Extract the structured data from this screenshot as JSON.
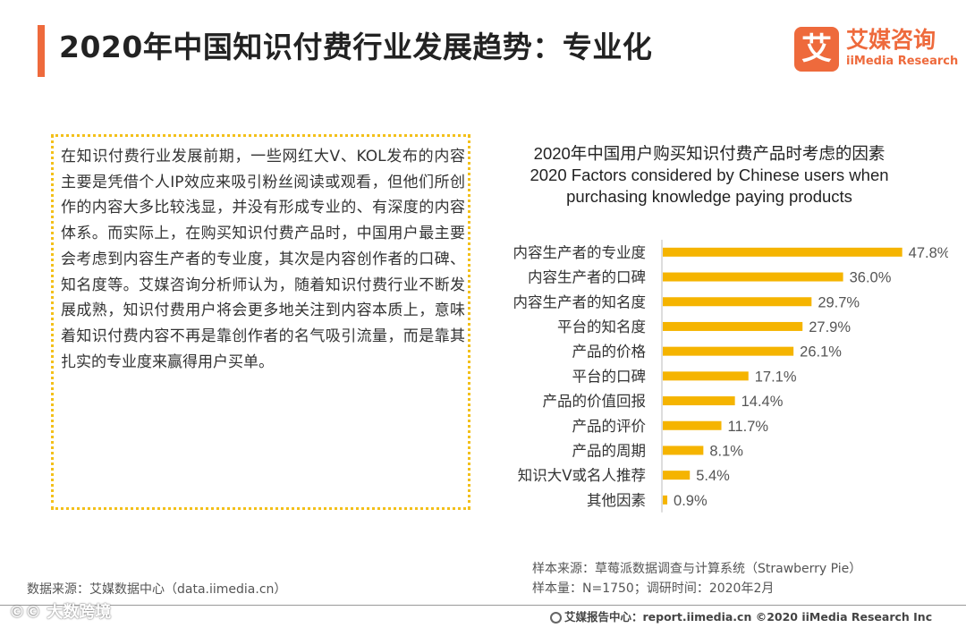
{
  "header": {
    "title": "2020年中国知识付费行业发展趋势：专业化",
    "logo_mark": "艾",
    "logo_cn": "艾媒咨询",
    "logo_en": "iiMedia Research"
  },
  "textbox": {
    "paragraph": "在知识付费行业发展前期，一些网红大V、KOL发布的内容主要是凭借个人IP效应来吸引粉丝阅读或观看，但他们所创作的内容大多比较浅显，并没有形成专业的、有深度的内容体系。而实际上，在购买知识付费产品时，中国用户最主要会考虑到内容生产者的专业度，其次是内容创作者的口碑、知名度等。艾媒咨询分析师认为，随着知识付费行业不断发展成熟，知识付费用户将会更多地关注到内容本质上，意味着知识付费内容不再是靠创作者的名气吸引流量，而是靠其扎实的专业度来赢得用户买单。"
  },
  "chart_data": {
    "type": "bar",
    "orientation": "horizontal",
    "title": "2020年中国用户购买知识付费产品时考虑的因素",
    "subtitle_line1": "2020 Factors considered by Chinese users when",
    "subtitle_line2": "purchasing knowledge paying products",
    "categories": [
      "内容生产者的专业度",
      "内容生产者的口碑",
      "内容生产者的知名度",
      "平台的知名度",
      "产品的价格",
      "平台的口碑",
      "产品的价值回报",
      "产品的评价",
      "产品的周期",
      "知识大V或名人推荐",
      "其他因素"
    ],
    "values": [
      47.8,
      36.0,
      29.7,
      27.9,
      26.1,
      17.1,
      14.4,
      11.7,
      8.1,
      5.4,
      0.9
    ],
    "value_labels": [
      "47.8%",
      "36.0%",
      "29.7%",
      "27.9%",
      "26.1%",
      "17.1%",
      "14.4%",
      "11.7%",
      "8.1%",
      "5.4%",
      "0.9%"
    ],
    "unit": "%",
    "xlim": [
      0,
      50
    ],
    "bar_color": "#f5b400",
    "grid": false
  },
  "sources": {
    "left": "数据来源：艾媒数据中心（data.iimedia.cn）",
    "sample_source": "样本来源：草莓派数据调查与计算系统（Strawberry Pie）",
    "sample_size": "样本量：N=1750；调研时间：2020年2月"
  },
  "footer": {
    "text": "艾媒报告中心：report.iimedia.cn ©2020 iiMedia Research Inc",
    "watermark": "©© 大数跨境"
  },
  "colors": {
    "accent": "#ee6a3c",
    "border": "#f3c01a"
  }
}
